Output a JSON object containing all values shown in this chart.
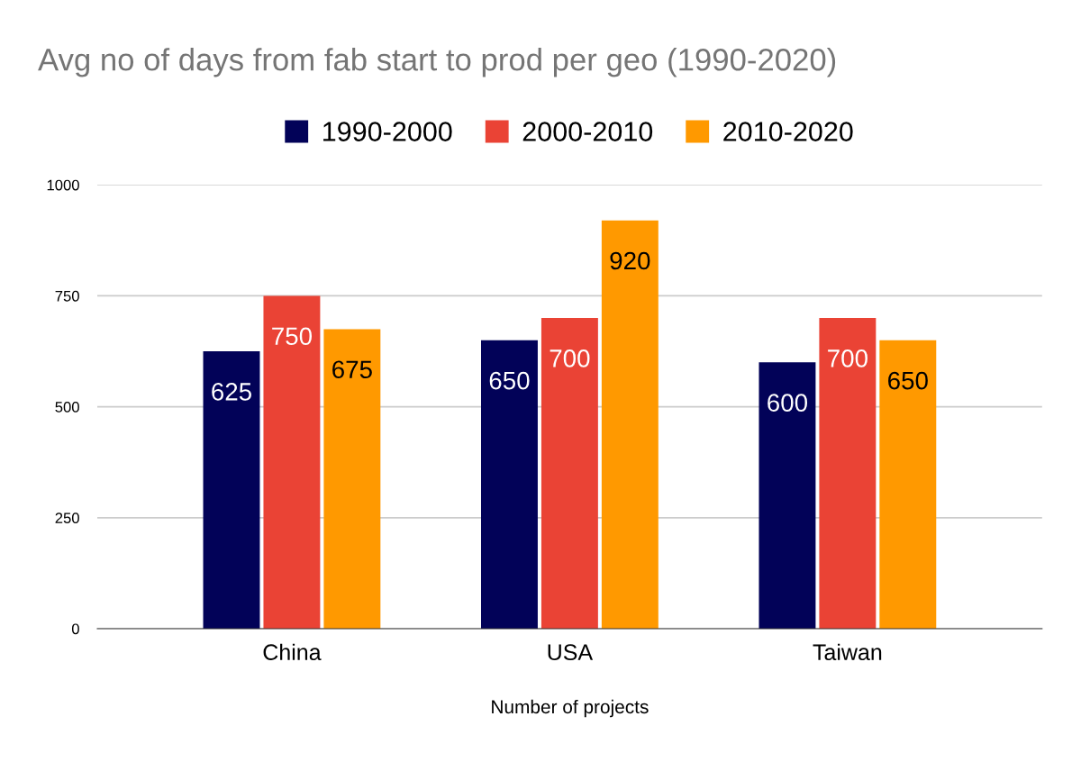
{
  "chart_data": {
    "type": "bar",
    "title": "Avg no of days from fab start to prod per geo (1990-2020)",
    "xlabel": "Number of projects",
    "categories": [
      "China",
      "USA",
      "Taiwan"
    ],
    "series": [
      {
        "name": "1990-2000",
        "color": "#020258",
        "values": [
          625,
          650,
          600
        ]
      },
      {
        "name": "2000-2010",
        "color": "#ea4335",
        "values": [
          750,
          700,
          700
        ]
      },
      {
        "name": "2010-2020",
        "color": "#ff9900",
        "values": [
          675,
          920,
          650
        ]
      }
    ],
    "ylim": [
      0,
      1000
    ],
    "yticks": [
      0,
      250,
      500,
      750,
      1000
    ],
    "grid": "y",
    "legend": "top",
    "data_labels": true
  }
}
